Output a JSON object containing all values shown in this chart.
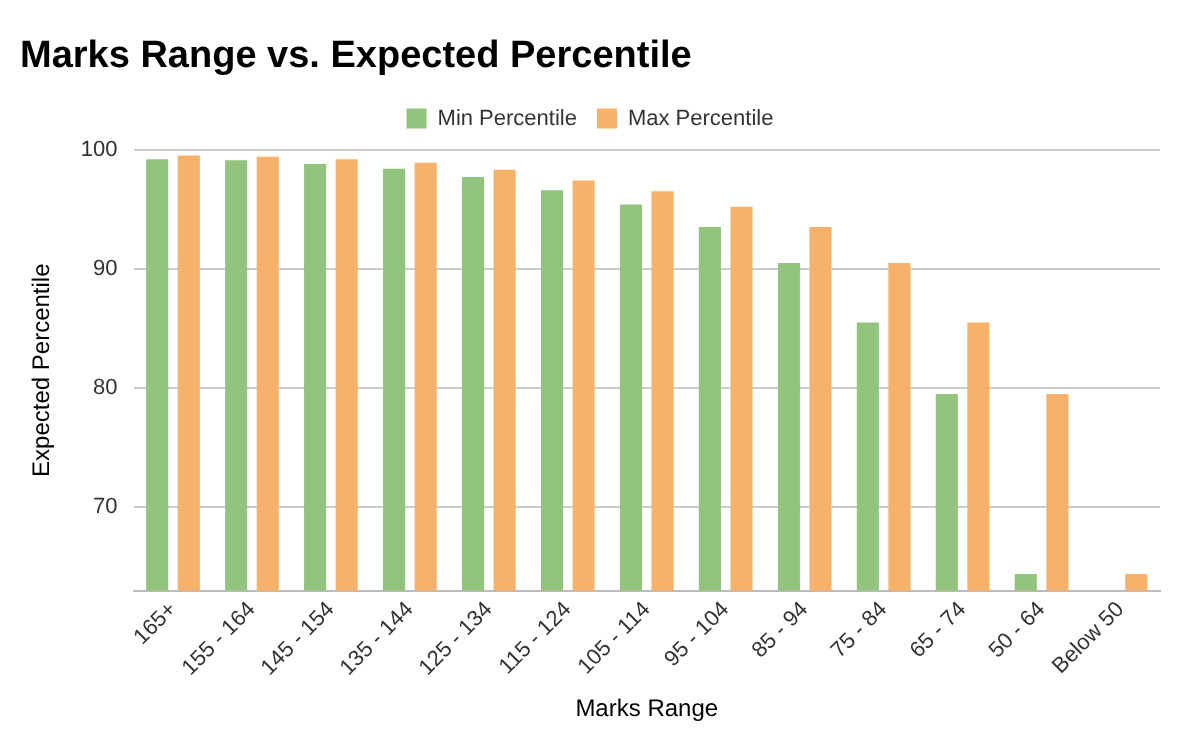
{
  "chart_data": {
    "type": "bar",
    "title": "Marks Range vs. Expected Percentile",
    "xlabel": "Marks Range",
    "ylabel": "Expected Percentile",
    "categories": [
      "165+",
      "155 - 164",
      "145 - 154",
      "135 - 144",
      "125 - 134",
      "115 - 124",
      "105 - 114",
      "95 - 104",
      "85 - 94",
      "75 - 84",
      "65 - 74",
      "50 - 64",
      "Below 50"
    ],
    "series": [
      {
        "name": "Min Percentile",
        "color": "#93c47d",
        "values": [
          99.2,
          99.1,
          98.8,
          98.4,
          97.7,
          96.6,
          95.4,
          93.5,
          90.5,
          85.5,
          79.5,
          64.4,
          null
        ]
      },
      {
        "name": "Max Percentile",
        "color": "#f6b26b",
        "values": [
          99.5,
          99.4,
          99.2,
          98.9,
          98.3,
          97.4,
          96.5,
          95.2,
          93.5,
          90.5,
          85.5,
          79.5,
          64.4
        ]
      }
    ],
    "ylim": [
      63,
      100
    ],
    "yticks": [
      70,
      80,
      90,
      100
    ],
    "grid": "y",
    "legend": "top"
  }
}
